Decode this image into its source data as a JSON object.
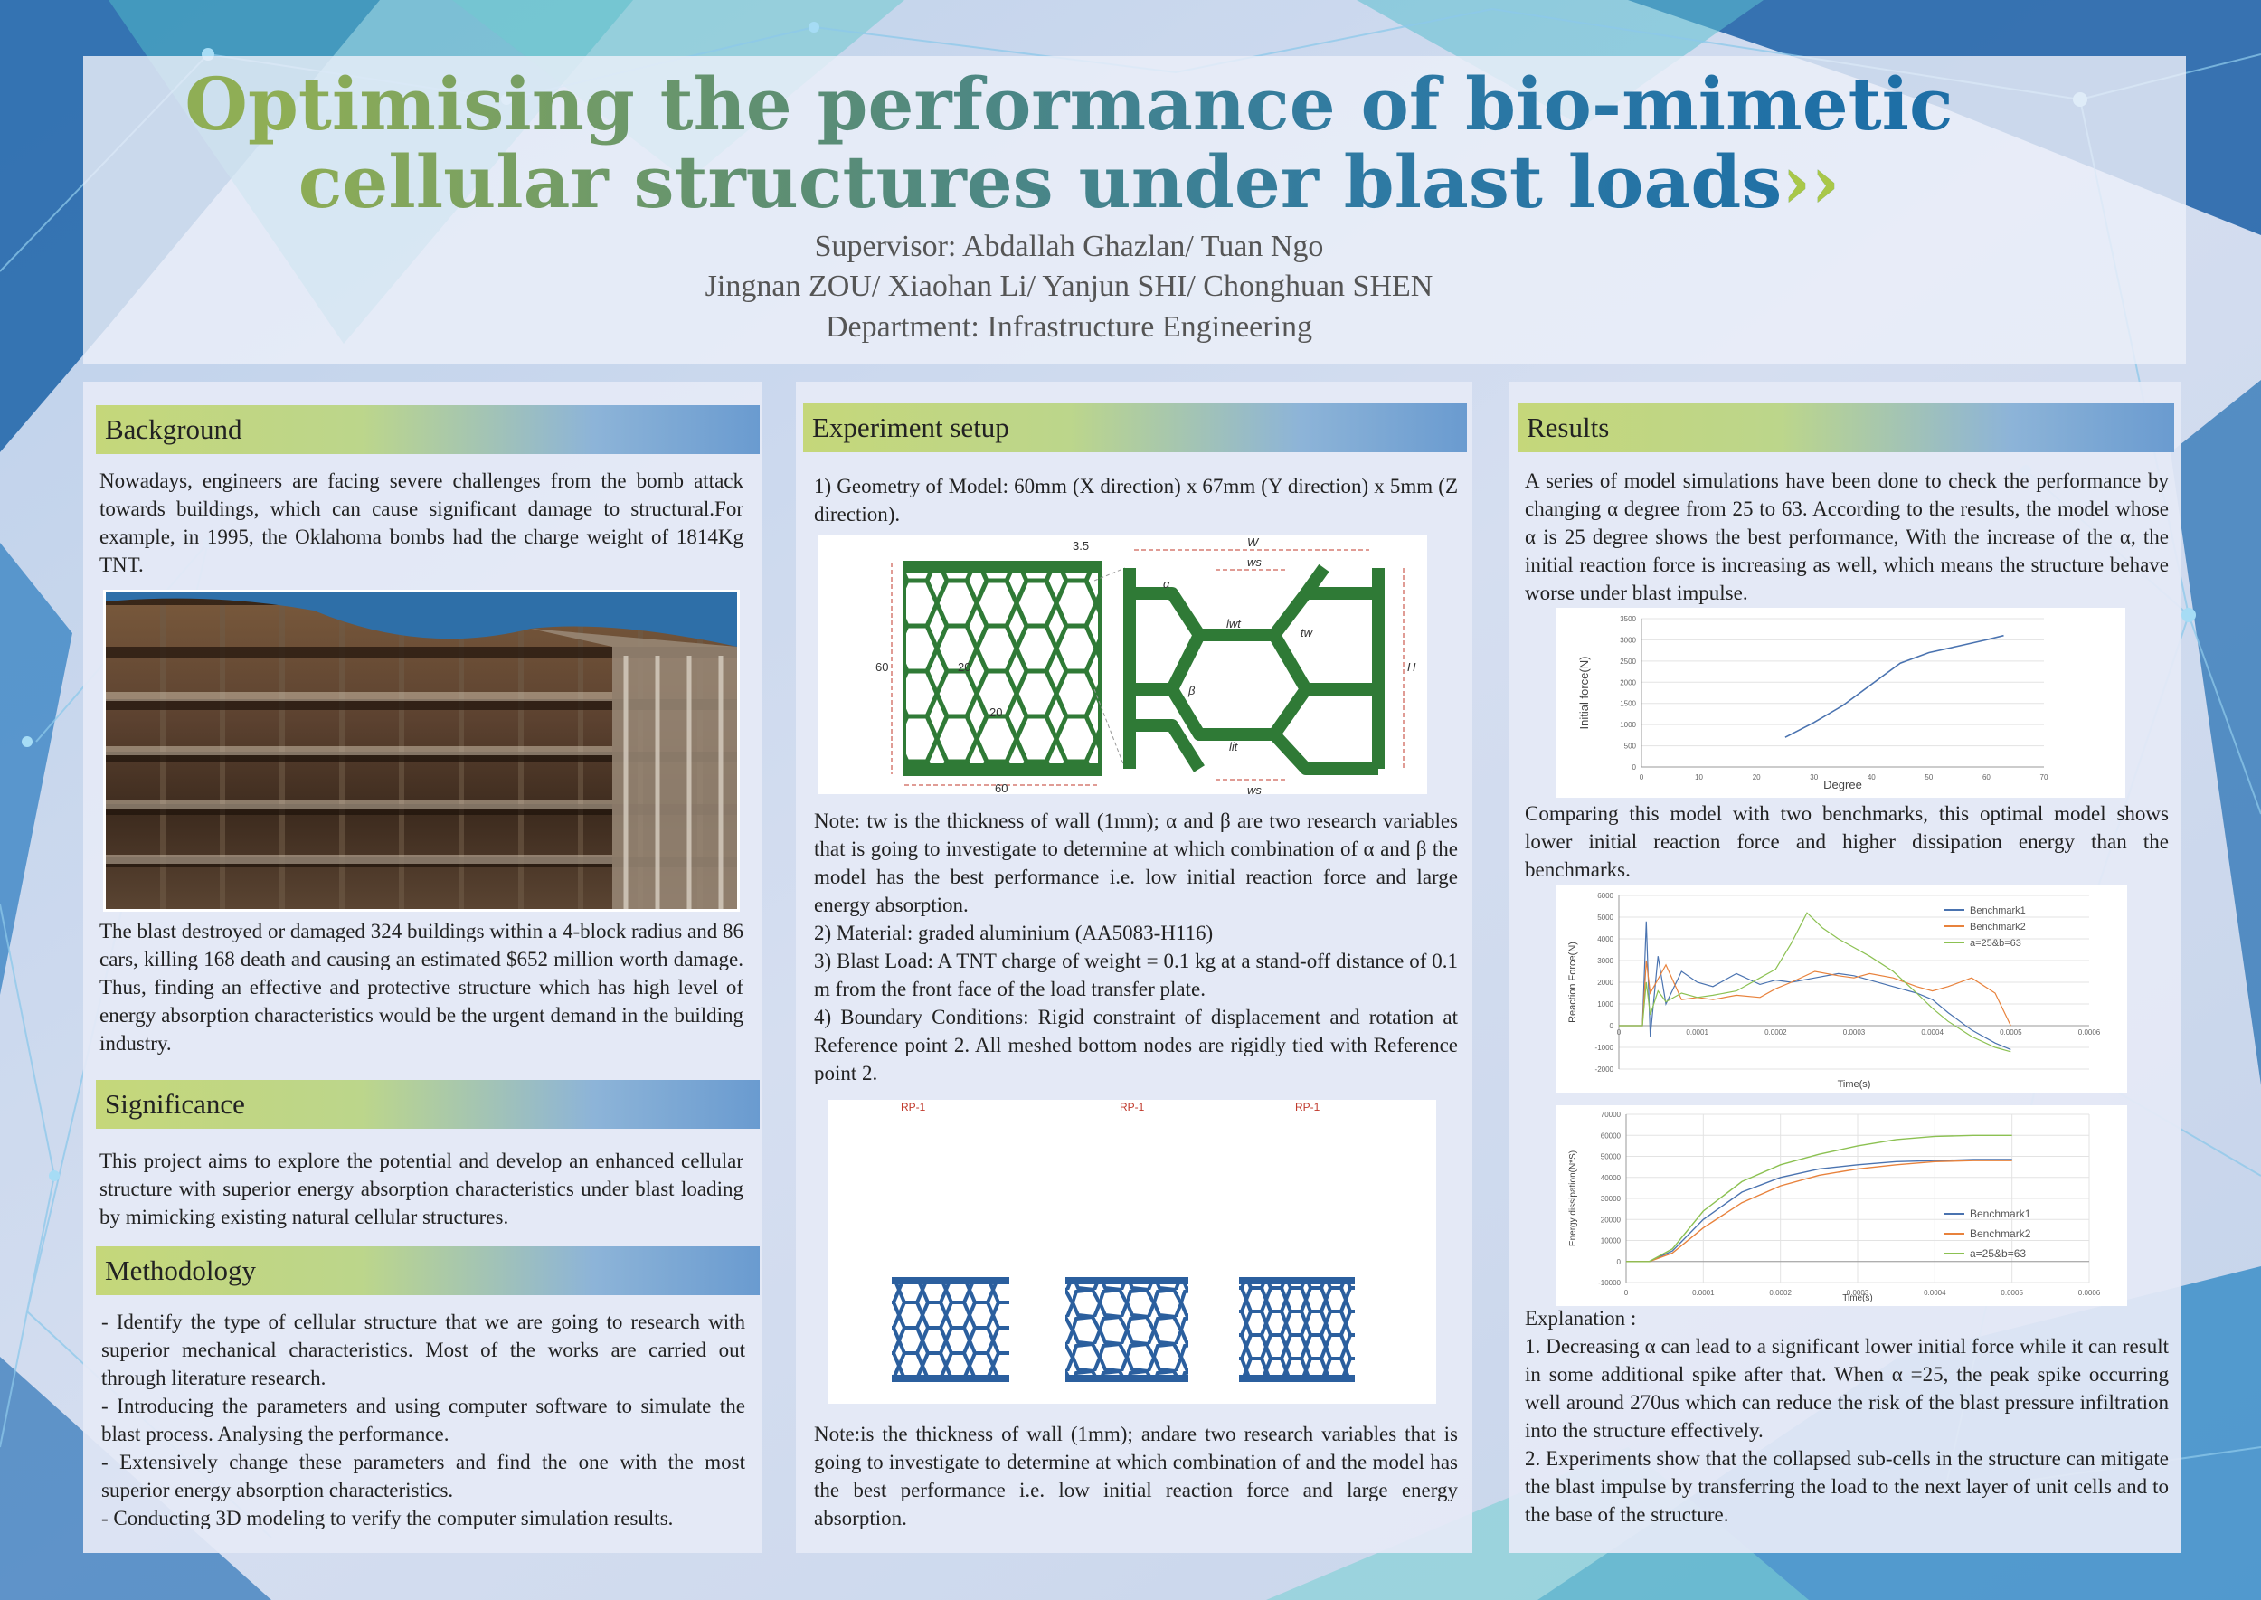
{
  "header": {
    "title_line1": "Optimising the performance of bio-mimetic",
    "title_line2": "cellular structures under blast loads",
    "title_chevron": "››",
    "supervisor": "Supervisor: Abdallah Ghazlan/ Tuan Ngo",
    "students": "Jingnan ZOU/ Xiaohan Li/ Yanjun SHI/ Chonghuan SHEN",
    "department": "Department: Infrastructure Engineering"
  },
  "background": {
    "heading": "Background",
    "intro": "Nowadays, engineers are facing severe challenges from the bomb attack towards buildings, which can cause significant damage to structural.For example, in 1995, the Oklahoma bombs had the charge weight of 1814Kg TNT.",
    "impact": "The blast destroyed or damaged 324 buildings within a 4-block radius and 86 cars, killing 168 death and causing an estimated $652 million worth damage. Thus, finding an effective and protective structure which has high level of energy absorption characteristics would be the urgent demand in the building industry."
  },
  "significance": {
    "heading": "Significance",
    "text": "This project aims to explore the potential and develop an enhanced cellular structure with superior energy absorption characteristics under blast loading by mimicking existing natural cellular structures."
  },
  "methodology": {
    "heading": "Methodology",
    "items": [
      "- Identify the type of cellular structure that we are going to research with superior mechanical characteristics. Most of the works are carried out through literature research.",
      "- Introducing the parameters and using computer software to simulate the blast process. Analysing the performance.",
      "- Extensively change these parameters and find the one with the most superior energy absorption characteristics.",
      "- Conducting 3D modeling to verify the computer simulation results."
    ]
  },
  "experiment": {
    "heading": "Experiment setup",
    "geometry": "1) Geometry of Model: 60mm (X direction) x 67mm (Y direction) x 5mm (Z direction).",
    "note1": "Note: tw is the thickness of wall (1mm); α and β are two research variables that is going to investigate to determine at which combination of α and β the model has the best performance i.e. low initial reaction force and large energy absorption.",
    "material": "2) Material: graded aluminium (AA5083-H116)",
    "blast_load": "3) Blast Load: A TNT charge of weight = 0.1 kg at a stand-off distance of 0.1 m from the front face of the load transfer plate.",
    "boundary": "4) Boundary Conditions: Rigid constraint of displacement and rotation at Reference point 2. All meshed bottom nodes are rigidly tied with Reference point 2.",
    "note2": "Note:is the thickness of wall (1mm); andare two research variables that is going to investigate to determine at which combination of and the model has the best performance i.e. low initial reaction force and large energy absorption.",
    "diagram_labels": {
      "top": "3.5",
      "left": "60",
      "cell_h": "20",
      "cell_w": "20",
      "bottom": "60",
      "W": "W",
      "ws_top": "ws",
      "H": "H",
      "lwt": "lwt",
      "tw": "tw",
      "beta": "β",
      "lit": "lit",
      "ws_bottom": "ws",
      "alpha": "α"
    },
    "rp_labels": [
      "RP-1",
      "RP-1",
      "RP-1"
    ]
  },
  "results": {
    "heading": "Results",
    "intro": "A series of model simulations have been done to check the performance by changing α degree from 25 to 63. According to the results, the model whose α is 25 degree shows the best performance, With the increase of the α, the initial reaction force is increasing as well, which means the structure behave worse under blast impulse.",
    "comparison": "Comparing this model with two benchmarks, this optimal model shows lower initial reaction force and higher dissipation energy than the benchmarks.",
    "explanation_title": "Explanation :",
    "explanation_1": "1. Decreasing α can lead to a significant lower initial force while it can result in some additional spike after that. When α =25, the peak spike occurring well around 270us which can reduce the risk of the blast pressure infiltration into the structure effectively.",
    "explanation_2": "2. Experiments show that the collapsed sub-cells in the structure can mitigate the blast impulse by transferring the load to the next layer of unit cells and to the base of the structure."
  },
  "chart_data": [
    {
      "type": "line",
      "xlabel": "Degree",
      "ylabel": "Initial force(N)",
      "xlim": [
        0,
        70
      ],
      "ylim": [
        0,
        3500
      ],
      "xticks": [
        "0",
        "10",
        "20",
        "30",
        "40",
        "50",
        "60",
        "70"
      ],
      "yticks": [
        "0",
        "500",
        "1000",
        "1500",
        "2000",
        "2500",
        "3000",
        "3500"
      ],
      "grid": true,
      "series": [
        {
          "color": "#4a73b0",
          "x": [
            25,
            30,
            35,
            40,
            45,
            50,
            55,
            60,
            63
          ],
          "y": [
            700,
            1050,
            1450,
            1950,
            2450,
            2700,
            2850,
            3000,
            3100
          ]
        }
      ]
    },
    {
      "type": "line",
      "xlabel": "Time(s)",
      "ylabel": "Reaction Force(N)",
      "xlim": [
        0,
        0.0006
      ],
      "ylim": [
        -2000,
        6000
      ],
      "xticks": [
        "0",
        "0.0001",
        "0.0002",
        "0.0003",
        "0.0004",
        "0.0005",
        "0.0006"
      ],
      "yticks": [
        "-2000",
        "-1000",
        "0",
        "1000",
        "2000",
        "3000",
        "4000",
        "5000",
        "6000"
      ],
      "legend": "top-right",
      "series": [
        {
          "name": "Benchmark1",
          "color": "#4a73b0",
          "x": [
            0,
            3e-05,
            3.5e-05,
            4e-05,
            5e-05,
            6e-05,
            8e-05,
            0.0001,
            0.00012,
            0.00015,
            0.00018,
            0.0002,
            0.00022,
            0.00025,
            0.00028,
            0.0003,
            0.00032,
            0.00035,
            0.00038,
            0.0004,
            0.00042,
            0.00045,
            0.00048,
            0.0005
          ],
          "y": [
            0,
            0,
            4800,
            -500,
            3200,
            1000,
            2500,
            2000,
            1800,
            2400,
            1900,
            2100,
            2000,
            2200,
            2400,
            2300,
            2100,
            1800,
            1500,
            1200,
            600,
            -200,
            -800,
            -1100
          ]
        },
        {
          "name": "Benchmark2",
          "color": "#e8823c",
          "x": [
            0,
            3e-05,
            3.5e-05,
            4e-05,
            6e-05,
            8e-05,
            0.0001,
            0.00012,
            0.00015,
            0.00018,
            0.0002,
            0.00022,
            0.00025,
            0.00028,
            0.0003,
            0.00032,
            0.00035,
            0.00038,
            0.0004,
            0.00042,
            0.00045,
            0.00048,
            0.0005
          ],
          "y": [
            0,
            0,
            3000,
            1500,
            2800,
            1200,
            1300,
            1200,
            1400,
            1300,
            1700,
            2000,
            2500,
            2300,
            2200,
            2400,
            2200,
            1800,
            1600,
            1800,
            2200,
            1500,
            0
          ]
        },
        {
          "name": "a=25&b=63",
          "color": "#8cc152",
          "x": [
            0,
            3e-05,
            3.5e-05,
            4e-05,
            5e-05,
            6e-05,
            8e-05,
            0.0001,
            0.00012,
            0.00015,
            0.00018,
            0.0002,
            0.00022,
            0.00024,
            0.00026,
            0.00028,
            0.0003,
            0.00032,
            0.00035,
            0.00038,
            0.0004,
            0.00042,
            0.00045,
            0.00048,
            0.0005
          ],
          "y": [
            0,
            0,
            2000,
            500,
            1600,
            1100,
            1500,
            1300,
            1400,
            1600,
            2200,
            2600,
            3800,
            5200,
            4500,
            4000,
            3600,
            3200,
            2500,
            1500,
            800,
            200,
            -500,
            -1000,
            -1200
          ]
        }
      ]
    },
    {
      "type": "line",
      "ylabel": "Energy dissipation(N*S)",
      "xlabel": "Time(s)",
      "xlim": [
        0,
        0.0006
      ],
      "ylim": [
        -10000,
        70000
      ],
      "xticks": [
        "0",
        "0.0001",
        "0.0002",
        "0.0003",
        "0.0004",
        "0.0005",
        "0.0006"
      ],
      "yticks": [
        "-10000",
        "0",
        "10000",
        "20000",
        "30000",
        "40000",
        "50000",
        "60000",
        "70000"
      ],
      "legend": "bottom-right",
      "series": [
        {
          "name": "Benchmark1",
          "color": "#4a73b0",
          "x": [
            0,
            3e-05,
            6e-05,
            0.0001,
            0.00015,
            0.0002,
            0.00025,
            0.0003,
            0.00035,
            0.0004,
            0.00045,
            0.0005
          ],
          "y": [
            0,
            0,
            5000,
            20000,
            33000,
            40000,
            44000,
            46000,
            47500,
            48000,
            48500,
            48500
          ]
        },
        {
          "name": "Benchmark2",
          "color": "#e8823c",
          "x": [
            0,
            3e-05,
            6e-05,
            0.0001,
            0.00015,
            0.0002,
            0.00025,
            0.0003,
            0.00035,
            0.0004,
            0.00045,
            0.0005
          ],
          "y": [
            0,
            0,
            4000,
            16000,
            28000,
            36000,
            41000,
            44000,
            46000,
            47500,
            48000,
            48000
          ]
        },
        {
          "name": "a=25&b=63",
          "color": "#8cc152",
          "x": [
            0,
            3e-05,
            6e-05,
            0.0001,
            0.00015,
            0.0002,
            0.00025,
            0.0003,
            0.00035,
            0.0004,
            0.00045,
            0.0005
          ],
          "y": [
            0,
            0,
            6000,
            24000,
            38000,
            46000,
            51000,
            55000,
            58000,
            59500,
            60000,
            60000
          ]
        }
      ]
    }
  ]
}
